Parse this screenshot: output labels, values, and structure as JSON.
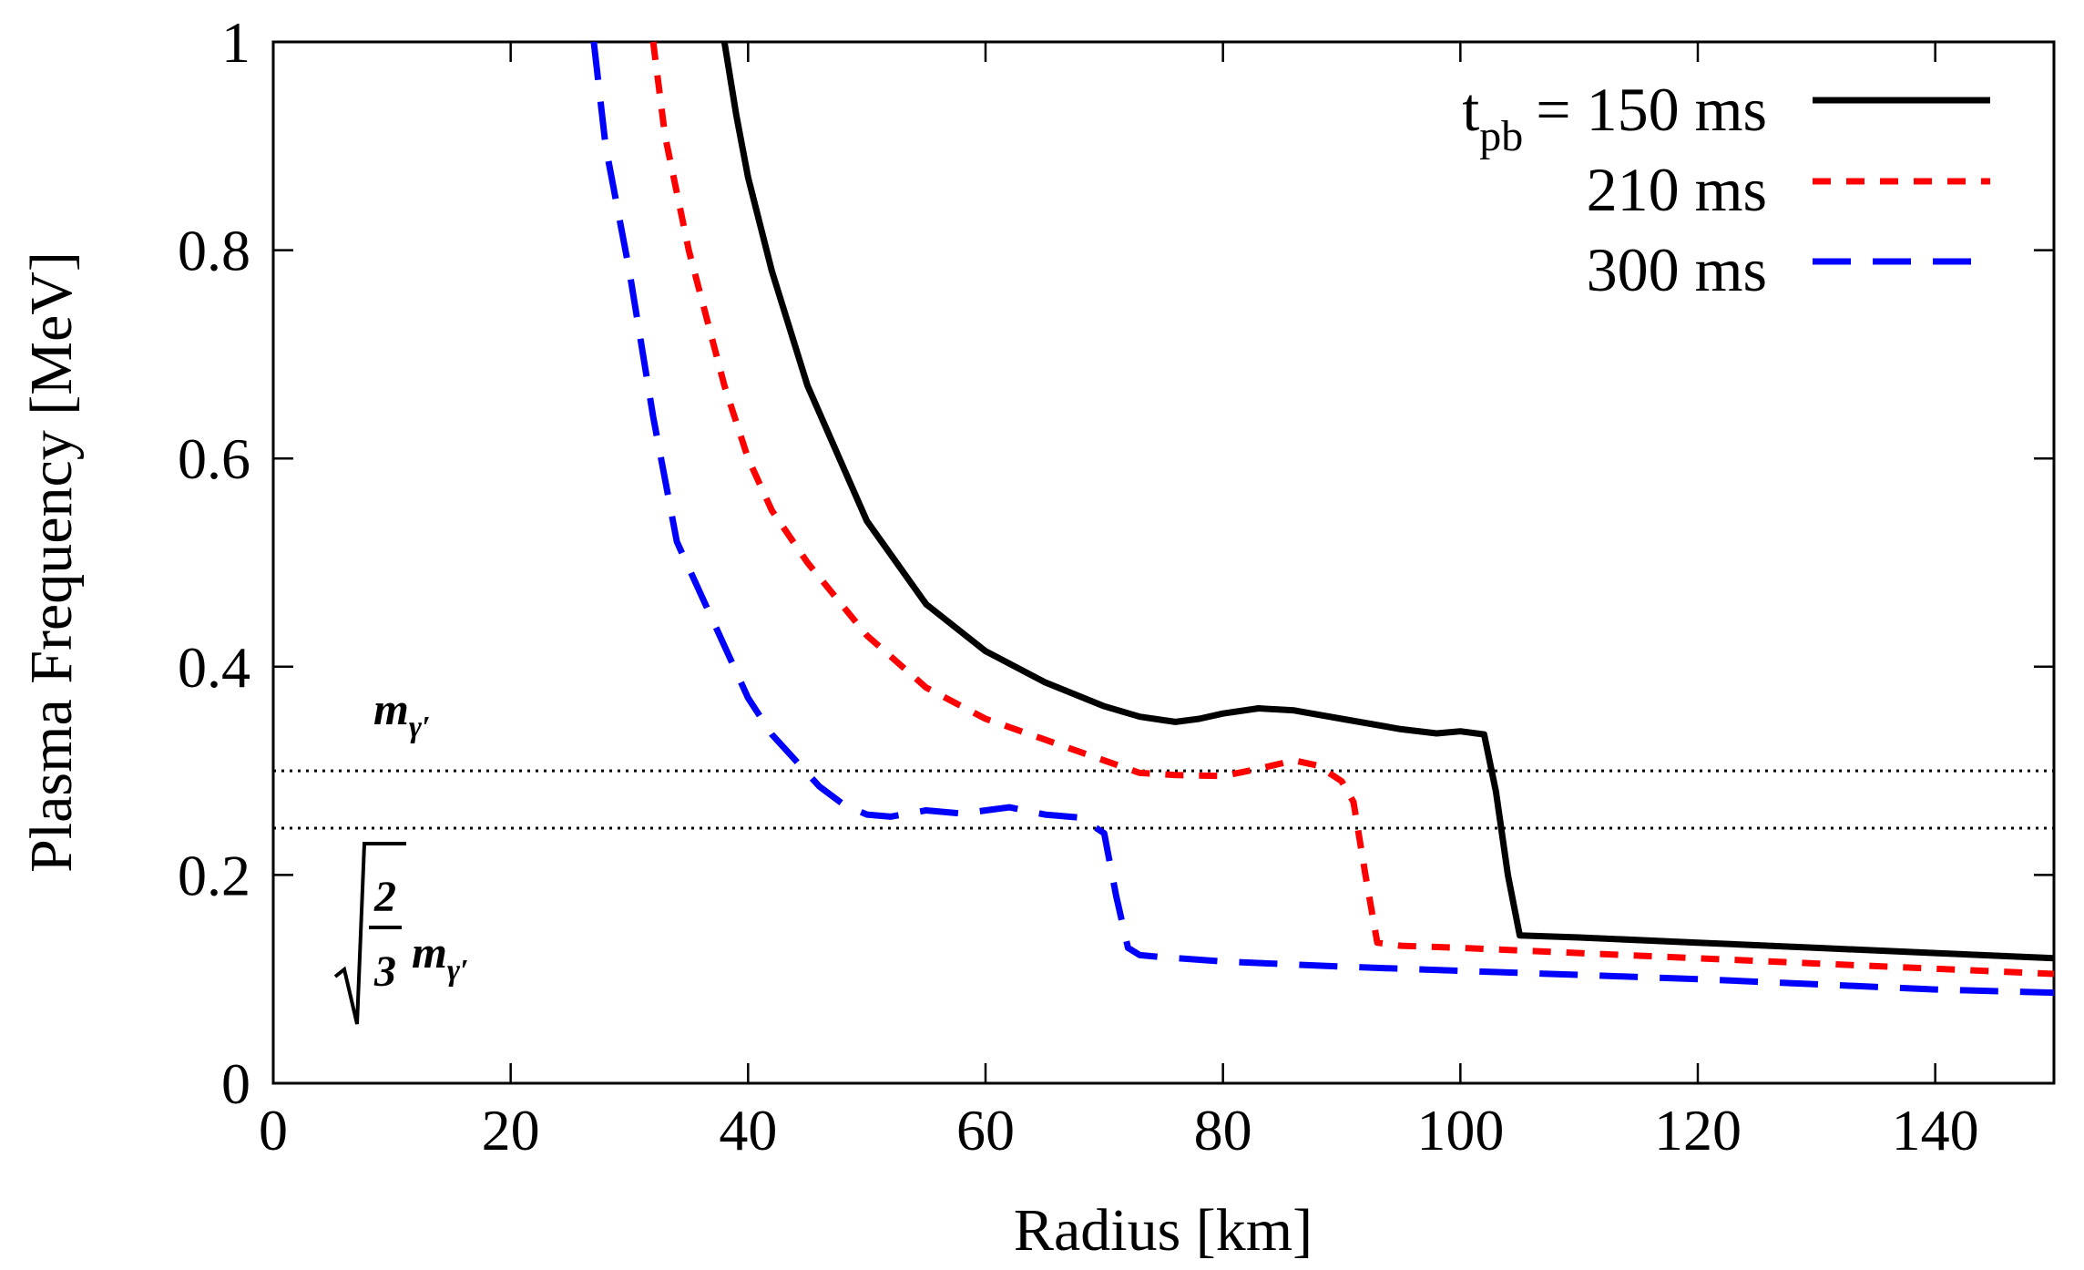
{
  "chart_data": {
    "type": "line",
    "xlabel": "Radius [km]",
    "ylabel": "Plasma Frequency [MeV]",
    "xlim": [
      0,
      150
    ],
    "ylim": [
      0,
      1
    ],
    "xticks": [
      0,
      20,
      40,
      60,
      80,
      100,
      120,
      140
    ],
    "xtick_labels": [
      "0",
      "20",
      "40",
      "60",
      "80",
      "100",
      "120",
      "140"
    ],
    "yticks": [
      0,
      0.2,
      0.4,
      0.6,
      0.8,
      1
    ],
    "ytick_labels": [
      "0",
      "0.2",
      "0.4",
      "0.6",
      "0.8",
      "1"
    ],
    "grid": false,
    "legend_position": "top-right",
    "legend_prefix": "t",
    "legend_prefix_sub": "pb",
    "series": [
      {
        "name": "150 ms",
        "legend_label": "= 150 ms",
        "color": "#000000",
        "dash": "solid",
        "x": [
          38,
          39,
          40,
          42,
          45,
          50,
          55,
          60,
          65,
          70,
          73,
          76,
          78,
          80,
          83,
          86,
          90,
          95,
          98,
          100,
          102,
          103,
          104,
          105,
          110,
          120,
          130,
          140,
          150
        ],
        "y": [
          1.0,
          0.93,
          0.87,
          0.78,
          0.67,
          0.54,
          0.46,
          0.415,
          0.385,
          0.362,
          0.352,
          0.347,
          0.35,
          0.355,
          0.36,
          0.358,
          0.35,
          0.34,
          0.336,
          0.338,
          0.335,
          0.28,
          0.2,
          0.142,
          0.14,
          0.135,
          0.13,
          0.125,
          0.12
        ]
      },
      {
        "name": "210 ms",
        "legend_label": "210 ms",
        "color": "#ff0000",
        "dash": "short",
        "x": [
          32,
          33,
          35,
          38,
          40,
          42,
          45,
          50,
          55,
          60,
          65,
          70,
          73,
          76,
          80,
          83,
          86,
          88,
          90,
          91,
          92,
          93,
          95,
          100,
          110,
          120,
          130,
          140,
          150
        ],
        "y": [
          1.0,
          0.91,
          0.8,
          0.67,
          0.6,
          0.55,
          0.5,
          0.43,
          0.38,
          0.35,
          0.33,
          0.31,
          0.298,
          0.296,
          0.295,
          0.302,
          0.31,
          0.305,
          0.29,
          0.27,
          0.2,
          0.135,
          0.132,
          0.13,
          0.125,
          0.12,
          0.115,
          0.11,
          0.105
        ]
      },
      {
        "name": "300 ms",
        "legend_label": "300 ms",
        "color": "#0000ff",
        "dash": "long",
        "x": [
          27,
          28,
          30,
          32,
          34,
          36,
          38,
          40,
          42,
          44,
          46,
          48,
          50,
          52,
          55,
          58,
          62,
          65,
          68,
          70,
          71,
          72,
          73,
          75,
          80,
          90,
          100,
          110,
          120,
          130,
          140,
          150
        ],
        "y": [
          1.0,
          0.9,
          0.78,
          0.64,
          0.52,
          0.47,
          0.42,
          0.37,
          0.335,
          0.31,
          0.285,
          0.268,
          0.258,
          0.256,
          0.262,
          0.259,
          0.265,
          0.258,
          0.255,
          0.24,
          0.18,
          0.13,
          0.123,
          0.121,
          0.117,
          0.112,
          0.108,
          0.104,
          0.1,
          0.095,
          0.09,
          0.087
        ]
      }
    ],
    "reference_lines": [
      {
        "name": "m-gamma-prime",
        "y": 0.3,
        "style": "dotted"
      },
      {
        "name": "sqrt-two-thirds-m-gamma-prime",
        "y": 0.245,
        "style": "dotted"
      }
    ],
    "annotations": {
      "upper_symbol": "m",
      "upper_sub": "γ′",
      "lower_symbol": "m",
      "lower_sub": "γ′",
      "fraction_numerator": "2",
      "fraction_denominator": "3"
    }
  }
}
